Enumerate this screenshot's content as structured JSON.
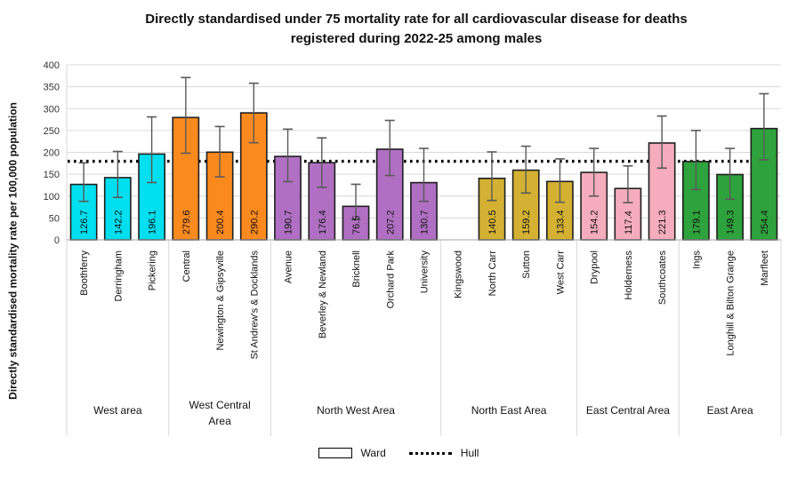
{
  "chart_data": {
    "type": "bar",
    "title": "Directly standardised under 75 mortality rate for all cardiovascular disease for deaths registered during 2022-25 among males",
    "title_lines": [
      "Directly standardised under 75 mortality rate for all cardiovascular disease for deaths",
      "registered during 2022-25 among males"
    ],
    "ylabel": "Directly standardised mortality rate per 100,000 population",
    "xlabel": "",
    "ylim": [
      0,
      400
    ],
    "ytick_step": 50,
    "grid": true,
    "legend_position": "bottom",
    "legend_entries": [
      "Ward",
      "Hull"
    ],
    "reference_line": {
      "name": "Hull",
      "value": 179.6,
      "style": "dotted",
      "color": "#000000"
    },
    "error_bar_color": "#595959",
    "bar_outline_color": "#1f1f1f",
    "groups": [
      {
        "name": "West area",
        "color": "#00DFEF",
        "wards": [
          {
            "name": "Boothferry",
            "value": 126.7,
            "ci_low": 88,
            "ci_high": 176
          },
          {
            "name": "Derringham",
            "value": 142.2,
            "ci_low": 97,
            "ci_high": 202
          },
          {
            "name": "Pickering",
            "value": 196.1,
            "ci_low": 131,
            "ci_high": 281
          }
        ]
      },
      {
        "name": "West Central Area",
        "label_lines": [
          "West Central",
          "Area"
        ],
        "color": "#FB8A1E",
        "wards": [
          {
            "name": "Central",
            "value": 279.6,
            "ci_low": 198,
            "ci_high": 371
          },
          {
            "name": "Newington & Gipsyville",
            "value": 200.4,
            "ci_low": 144,
            "ci_high": 259
          },
          {
            "name": "St Andrew's & Docklands",
            "value": 290.2,
            "ci_low": 222,
            "ci_high": 358
          }
        ]
      },
      {
        "name": "North West Area",
        "color": "#B06FC2",
        "wards": [
          {
            "name": "Avenue",
            "value": 190.7,
            "ci_low": 133,
            "ci_high": 253
          },
          {
            "name": "Beverley & Newland",
            "value": 176.4,
            "ci_low": 120,
            "ci_high": 233
          },
          {
            "name": "Bricknell",
            "value": 76.5,
            "ci_low": 47,
            "ci_high": 127
          },
          {
            "name": "Orchard Park",
            "value": 207.2,
            "ci_low": 147,
            "ci_high": 273
          },
          {
            "name": "University",
            "value": 130.7,
            "ci_low": 88,
            "ci_high": 209
          }
        ]
      },
      {
        "name": "North East Area",
        "color": "#D4B132",
        "wards": [
          {
            "name": "Kingswood",
            "value": null,
            "ci_low": null,
            "ci_high": null
          },
          {
            "name": "North Carr",
            "value": 140.5,
            "ci_low": 90,
            "ci_high": 201
          },
          {
            "name": "Sutton",
            "value": 159.2,
            "ci_low": 107,
            "ci_high": 214
          },
          {
            "name": "West Carr",
            "value": 133.4,
            "ci_low": 86,
            "ci_high": 185
          }
        ]
      },
      {
        "name": "East Central Area",
        "color": "#F5ACBC",
        "wards": [
          {
            "name": "Drypool",
            "value": 154.2,
            "ci_low": 100,
            "ci_high": 209
          },
          {
            "name": "Holderness",
            "value": 117.4,
            "ci_low": 85,
            "ci_high": 169
          },
          {
            "name": "Southcoates",
            "value": 221.3,
            "ci_low": 164,
            "ci_high": 283
          }
        ]
      },
      {
        "name": "East Area",
        "color": "#2EA23C",
        "wards": [
          {
            "name": "Ings",
            "value": 179.1,
            "ci_low": 115,
            "ci_high": 250
          },
          {
            "name": "Longhill & Bilton Grange",
            "value": 149.3,
            "ci_low": 93,
            "ci_high": 209
          },
          {
            "name": "Marfleet",
            "value": 254.4,
            "ci_low": 183,
            "ci_high": 334
          }
        ]
      }
    ]
  }
}
